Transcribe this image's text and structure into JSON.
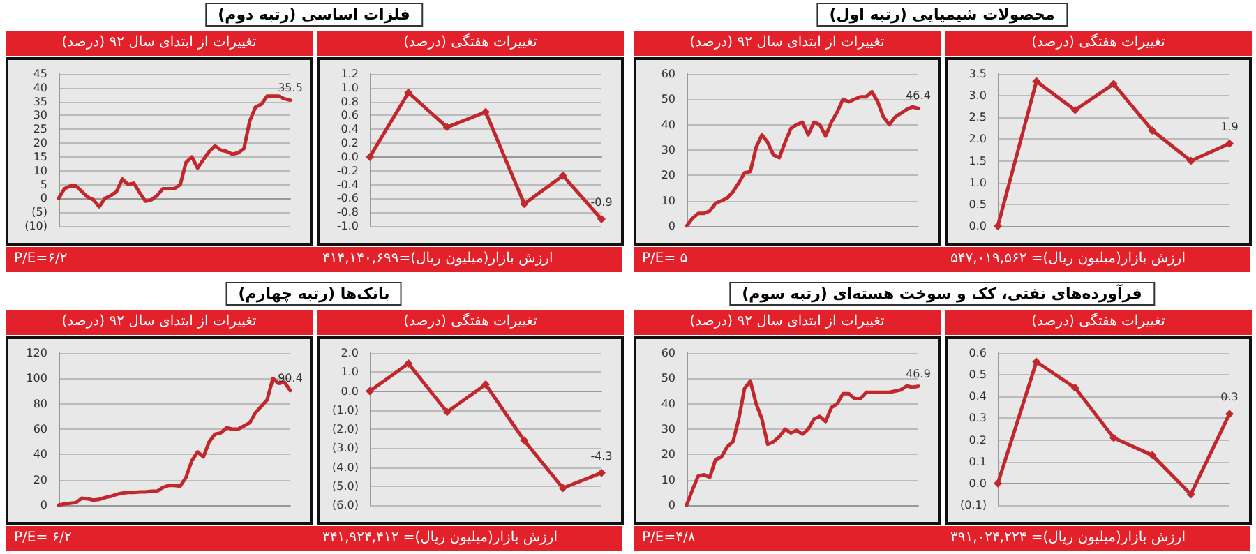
{
  "chart_data": [
    {
      "type": "line",
      "title": "تغییرات از ابتدای سال ۹۲ (درصد)",
      "annotations": [
        "فلزات اساسی (رتبه دوم)",
        "P/E=۶/۲"
      ],
      "categories": [
        null,
        null,
        null,
        null,
        null,
        null,
        null,
        null,
        null,
        null,
        null,
        null,
        null,
        null,
        null,
        null,
        null,
        null,
        null,
        null,
        null,
        null,
        null,
        null,
        null,
        null,
        null,
        null,
        null,
        null,
        null,
        null,
        null,
        null,
        null,
        null,
        null,
        null,
        null,
        null,
        null
      ],
      "values": [
        0,
        3.5,
        4.5,
        4.5,
        2.5,
        0.5,
        -0.5,
        -3,
        0,
        1,
        2.5,
        7,
        5,
        5.5,
        2,
        -1,
        -0.5,
        1,
        3.5,
        3.5,
        3.5,
        5,
        13,
        15,
        11,
        14,
        17,
        19,
        17.5,
        17,
        16,
        16.5,
        18,
        28,
        33,
        34,
        37,
        37,
        37,
        36,
        35.5
      ],
      "value_labels": [
        null,
        null,
        null,
        null,
        null,
        null,
        null,
        null,
        null,
        null,
        null,
        null,
        null,
        null,
        null,
        null,
        null,
        null,
        null,
        null,
        null,
        null,
        null,
        null,
        null,
        null,
        null,
        null,
        null,
        null,
        null,
        null,
        null,
        null,
        null,
        null,
        null,
        null,
        null,
        null,
        "35.5"
      ],
      "color": "#c0282d",
      "ylim": [
        -10,
        45
      ],
      "yticks": [
        {
          "value": -10,
          "label": "(10)"
        },
        {
          "value": -5,
          "label": "(5)"
        },
        0,
        5,
        10,
        15,
        20,
        25,
        30,
        35,
        40,
        45
      ],
      "grid": "y",
      "marker": "none",
      "line_style": "solid"
    },
    {
      "type": "line",
      "title": "تغییرات هفتگی (درصد)",
      "annotations": [
        "ارزش بازار(میلیون ریال)=۴۱۴,۱۴۰,۶۹۹"
      ],
      "categories": [
        null,
        null,
        null,
        null,
        null,
        null,
        null
      ],
      "values": [
        0,
        0.93,
        0.43,
        0.65,
        -0.68,
        -0.27,
        -0.9
      ],
      "value_labels": [
        null,
        null,
        null,
        null,
        null,
        null,
        "-0.9"
      ],
      "color": "#c0282d",
      "ylim": [
        -1,
        1.2
      ],
      "yticks": [
        {
          "value": -1,
          "label": "-1.0"
        },
        {
          "value": -0.8,
          "label": "-0.8"
        },
        {
          "value": -0.6,
          "label": "-0.6"
        },
        {
          "value": -0.4,
          "label": "-0.4"
        },
        {
          "value": -0.2,
          "label": "-0.2"
        },
        {
          "value": 0,
          "label": "0.0"
        },
        0.2,
        0.4,
        0.6,
        0.8,
        {
          "value": 1,
          "label": "1.0"
        },
        1.2
      ],
      "grid": "y",
      "marker": "diamond",
      "line_style": "solid"
    },
    {
      "type": "line",
      "title": "تغییرات از ابتدای سال ۹۲ (درصد)",
      "annotations": [
        "محصولات شیمیایی (رتبه اول)",
        "P/E= ۵"
      ],
      "categories": [
        null,
        null,
        null,
        null,
        null,
        null,
        null,
        null,
        null,
        null,
        null,
        null,
        null,
        null,
        null,
        null,
        null,
        null,
        null,
        null,
        null,
        null,
        null,
        null,
        null,
        null,
        null,
        null,
        null,
        null,
        null,
        null,
        null,
        null,
        null,
        null,
        null,
        null,
        null,
        null,
        null
      ],
      "values": [
        0,
        3,
        5,
        5,
        6,
        9,
        10,
        11,
        13.5,
        17,
        21,
        21.5,
        31,
        36,
        33,
        28,
        27,
        33,
        38.5,
        40,
        41,
        36,
        41,
        40,
        35.5,
        41,
        45,
        50,
        49,
        50,
        51,
        51,
        53,
        49,
        43,
        40,
        43,
        44.5,
        46,
        47,
        46.4
      ],
      "value_labels": [
        null,
        null,
        null,
        null,
        null,
        null,
        null,
        null,
        null,
        null,
        null,
        null,
        null,
        null,
        null,
        null,
        null,
        null,
        null,
        null,
        null,
        null,
        null,
        null,
        null,
        null,
        null,
        null,
        null,
        null,
        null,
        null,
        null,
        null,
        null,
        null,
        null,
        null,
        null,
        null,
        "46.4"
      ],
      "color": "#c0282d",
      "ylim": [
        0,
        60
      ],
      "yticks": [
        0,
        10,
        20,
        30,
        40,
        50,
        60
      ],
      "grid": "y",
      "marker": "none",
      "line_style": "solid"
    },
    {
      "type": "line",
      "title": "تغییرات هفتگی (درصد)",
      "annotations": [
        "ارزش بازار(میلیون ریال)= ۵۴۷,۰۱۹,۵۶۲"
      ],
      "categories": [
        null,
        null,
        null,
        null,
        null,
        null,
        null
      ],
      "values": [
        0,
        3.33,
        2.67,
        3.27,
        2.2,
        1.5,
        1.9
      ],
      "value_labels": [
        null,
        null,
        null,
        null,
        null,
        null,
        "1.9"
      ],
      "color": "#c0282d",
      "ylim": [
        0,
        3.5
      ],
      "yticks": [
        {
          "value": 0,
          "label": "0.0"
        },
        0.5,
        {
          "value": 1,
          "label": "1.0"
        },
        1.5,
        {
          "value": 2,
          "label": "2.0"
        },
        2.5,
        {
          "value": 3,
          "label": "3.0"
        },
        3.5
      ],
      "grid": "y",
      "marker": "diamond",
      "line_style": "solid"
    },
    {
      "type": "line",
      "title": "تغییرات از ابتدای سال ۹۲ (درصد)",
      "annotations": [
        "بانک‌ها (رتبه چهارم)",
        "P/E= ۶/۲"
      ],
      "categories": [
        null,
        null,
        null,
        null,
        null,
        null,
        null,
        null,
        null,
        null,
        null,
        null,
        null,
        null,
        null,
        null,
        null,
        null,
        null,
        null,
        null,
        null,
        null,
        null,
        null,
        null,
        null,
        null,
        null,
        null,
        null,
        null,
        null,
        null,
        null,
        null,
        null,
        null,
        null,
        null,
        null
      ],
      "values": [
        0,
        1,
        1.5,
        2,
        5.5,
        5,
        4,
        4.5,
        6,
        7,
        8.5,
        9.5,
        10,
        10,
        10.5,
        10.5,
        11,
        11,
        14,
        15.5,
        15.5,
        15,
        22,
        35,
        42,
        38,
        50,
        56,
        57,
        61,
        60,
        60,
        62.5,
        65,
        73,
        78,
        83,
        100,
        96,
        97,
        90.4
      ],
      "value_labels": [
        null,
        null,
        null,
        null,
        null,
        null,
        null,
        null,
        null,
        null,
        null,
        null,
        null,
        null,
        null,
        null,
        null,
        null,
        null,
        null,
        null,
        null,
        null,
        null,
        null,
        null,
        null,
        null,
        null,
        null,
        null,
        null,
        null,
        null,
        null,
        null,
        null,
        null,
        null,
        null,
        "90.4"
      ],
      "color": "#c0282d",
      "ylim": [
        0,
        120
      ],
      "yticks": [
        0,
        20,
        40,
        60,
        80,
        100,
        120
      ],
      "grid": "y",
      "marker": "none",
      "line_style": "solid"
    },
    {
      "type": "line",
      "title": "تغییرات هفتگی (درصد)",
      "annotations": [
        "ارزش بازار(میلیون ریال)= ۳۴۱,۹۲۴,۴۱۲"
      ],
      "categories": [
        null,
        null,
        null,
        null,
        null,
        null,
        null
      ],
      "values": [
        0,
        1.45,
        -1.1,
        0.35,
        -2.6,
        -5.1,
        -4.3
      ],
      "value_labels": [
        null,
        null,
        null,
        null,
        null,
        null,
        "-4.3"
      ],
      "color": "#c0282d",
      "ylim": [
        -6,
        2
      ],
      "yticks": [
        {
          "value": -6,
          "label": "(6.0)"
        },
        {
          "value": -5,
          "label": "(5.0)"
        },
        {
          "value": -4,
          "label": "(4.0)"
        },
        {
          "value": -3,
          "label": "(3.0)"
        },
        {
          "value": -2,
          "label": "(2.0)"
        },
        {
          "value": -1,
          "label": "(1.0)"
        },
        {
          "value": 0,
          "label": "0.0"
        },
        {
          "value": 1,
          "label": "1.0"
        },
        {
          "value": 2,
          "label": "2.0"
        }
      ],
      "grid": "y",
      "marker": "diamond",
      "line_style": "solid"
    },
    {
      "type": "line",
      "title": "تغییرات از ابتدای سال ۹۲ (درصد)",
      "annotations": [
        "فرآورده‌های نفتی، کک و سوخت هسته‌ای (رتبه سوم)",
        "P/E=۴/۸"
      ],
      "categories": [
        null,
        null,
        null,
        null,
        null,
        null,
        null,
        null,
        null,
        null,
        null,
        null,
        null,
        null,
        null,
        null,
        null,
        null,
        null,
        null,
        null,
        null,
        null,
        null,
        null,
        null,
        null,
        null,
        null,
        null,
        null,
        null,
        null,
        null,
        null,
        null,
        null,
        null,
        null,
        null,
        null
      ],
      "values": [
        0,
        6,
        11.5,
        12,
        11,
        18,
        19,
        23,
        25,
        34,
        46,
        49,
        40,
        34,
        24,
        25,
        27,
        30,
        28.5,
        29.5,
        28,
        30,
        34,
        35,
        33,
        38.5,
        40,
        44,
        44,
        42,
        42,
        44.5,
        44.5,
        44.5,
        44.5,
        44.5,
        45,
        45.5,
        47,
        46.5,
        46.9
      ],
      "value_labels": [
        null,
        null,
        null,
        null,
        null,
        null,
        null,
        null,
        null,
        null,
        null,
        null,
        null,
        null,
        null,
        null,
        null,
        null,
        null,
        null,
        null,
        null,
        null,
        null,
        null,
        null,
        null,
        null,
        null,
        null,
        null,
        null,
        null,
        null,
        null,
        null,
        null,
        null,
        null,
        null,
        "46.9"
      ],
      "color": "#c0282d",
      "ylim": [
        0,
        60
      ],
      "yticks": [
        0,
        10,
        20,
        30,
        40,
        50,
        60
      ],
      "grid": "y",
      "marker": "none",
      "line_style": "solid"
    },
    {
      "type": "line",
      "title": "تغییرات هفتگی (درصد)",
      "annotations": [
        "ارزش بازار(میلیون ریال)= ۳۹۱,۰۲۴,۲۲۴"
      ],
      "categories": [
        null,
        null,
        null,
        null,
        null,
        null,
        null
      ],
      "values": [
        0,
        0.56,
        0.44,
        0.21,
        0.13,
        -0.05,
        0.32
      ],
      "value_labels": [
        null,
        null,
        null,
        null,
        null,
        null,
        "0.3"
      ],
      "color": "#c0282d",
      "ylim": [
        -0.1,
        0.6
      ],
      "yticks": [
        {
          "value": -0.1,
          "label": "(0.1)"
        },
        {
          "value": 0,
          "label": "0.0"
        },
        0.1,
        0.2,
        0.3,
        0.4,
        0.5,
        0.6
      ],
      "grid": "y",
      "marker": "diamond",
      "line_style": "solid"
    }
  ]
}
